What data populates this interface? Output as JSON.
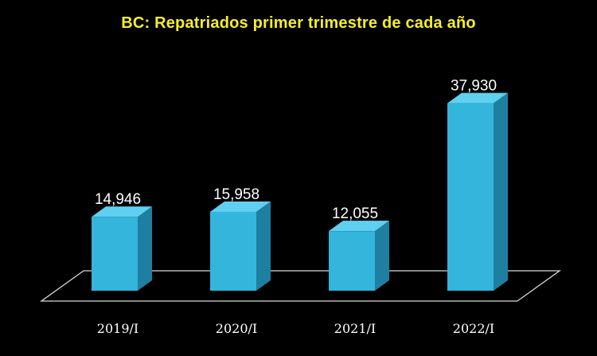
{
  "chart_data": {
    "type": "bar",
    "title": "BC: Repatriados primer trimestre de cada año",
    "categories": [
      "2019/I",
      "2020/I",
      "2021/I",
      "2022/I"
    ],
    "values": [
      14946,
      15958,
      12055,
      37930
    ],
    "value_labels": [
      "14,946",
      "15,958",
      "12,055",
      "37,930"
    ],
    "xlabel": "",
    "ylabel": "",
    "ylim": [
      0,
      40000
    ],
    "grid": false,
    "legend": "none",
    "colors": {
      "background": "#000000",
      "title": "#f5ee2a",
      "bar_front": "#33b5dc",
      "bar_side": "#1f7fa0",
      "bar_top": "#5fd0ef",
      "floor_line": "#d8d8d8",
      "text": "#ffffff"
    }
  }
}
